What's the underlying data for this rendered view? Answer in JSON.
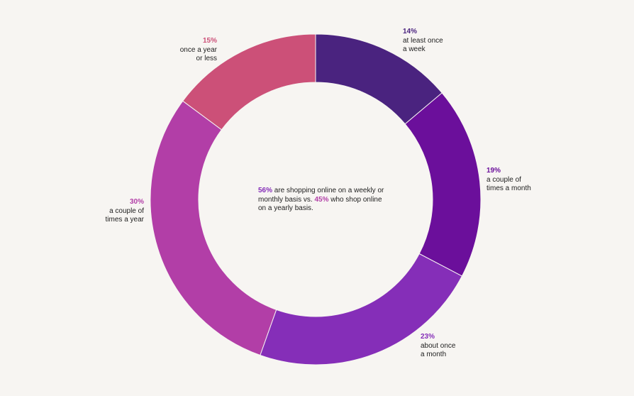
{
  "colors": {
    "background": "#f7f5f2",
    "text": "#1e1e1e"
  },
  "chart_data": {
    "type": "pie",
    "variant": "donut",
    "start_angle_deg": 0,
    "direction": "clockwise",
    "slices": [
      {
        "pct_label": "14%",
        "value": 14,
        "label": "at least once\na week",
        "color": "#4a237f",
        "label_align": "left"
      },
      {
        "pct_label": "19%",
        "value": 19,
        "label": "a couple of\ntimes a month",
        "color": "#6b0f9b",
        "label_align": "left"
      },
      {
        "pct_label": "23%",
        "value": 23,
        "label": "about once\na month",
        "color": "#852eb8",
        "label_align": "left"
      },
      {
        "pct_label": "30%",
        "value": 30,
        "label": "a couple of\ntimes a year",
        "color": "#b23ea7",
        "label_align": "right"
      },
      {
        "pct_label": "15%",
        "value": 15,
        "label": "once a year\nor less",
        "color": "#cc5078",
        "label_align": "right"
      }
    ],
    "center_text": {
      "pct1": "56%",
      "text1": " are shopping online on a weekly or monthly basis vs. ",
      "pct2": "45%",
      "text2": " who shop online on a yearly basis.",
      "pct1_color": "#852eb8",
      "pct2_color": "#b23ea7"
    }
  }
}
